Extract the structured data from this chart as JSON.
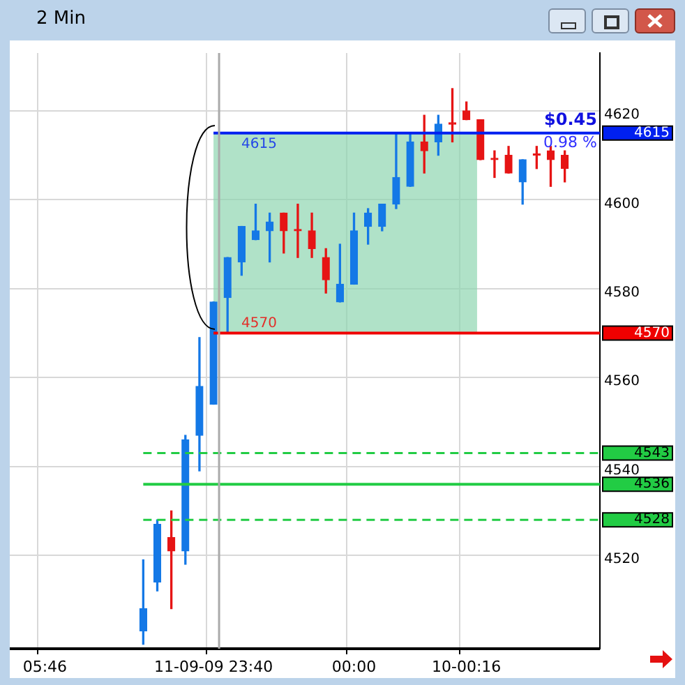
{
  "chart_data": {
    "type": "candlestick",
    "title": "2 Min",
    "categories": [
      null,
      null,
      "05:46",
      null,
      null,
      null,
      null,
      null,
      null,
      null,
      null,
      null,
      null,
      null,
      "11-09-09 23:40",
      null,
      null,
      null,
      null,
      null,
      null,
      null,
      null,
      null,
      "00:00",
      null,
      null,
      null,
      null,
      null,
      null,
      null,
      "10-00:16",
      null,
      null,
      null,
      null,
      null,
      null,
      null,
      null,
      null
    ],
    "ohlc": [
      null,
      null,
      null,
      null,
      null,
      null,
      null,
      null,
      null,
      [
        4503,
        4519,
        4500,
        4508
      ],
      [
        4514,
        4528,
        4512,
        4527
      ],
      [
        4524,
        4530,
        4508,
        4521
      ],
      [
        4521,
        4547,
        4518,
        4546
      ],
      [
        4547,
        4569,
        4539,
        4558
      ],
      [
        4554,
        4577,
        4554,
        4577
      ],
      [
        4578,
        4587,
        4570,
        4587
      ],
      [
        4586,
        4594,
        4583,
        4594
      ],
      [
        4591,
        4599,
        4591,
        4593
      ],
      [
        4593,
        4597,
        4586,
        4595
      ],
      [
        4597,
        4597,
        4588,
        4593
      ],
      [
        4593,
        4599,
        4587,
        4593
      ],
      [
        4593,
        4597,
        4587,
        4589
      ],
      [
        4587,
        4589,
        4579,
        4582
      ],
      [
        4577,
        4590,
        4577,
        4581
      ],
      [
        4581,
        4597,
        4581,
        4593
      ],
      [
        4594,
        4598,
        4590,
        4597
      ],
      [
        4594,
        4599,
        4593,
        4599
      ],
      [
        4599,
        4615,
        4598,
        4605
      ],
      [
        4603,
        4615,
        4603,
        4613
      ],
      [
        4613,
        4619,
        4606,
        4611
      ],
      [
        4613,
        4619,
        4610,
        4617
      ],
      [
        4617,
        4625,
        4613,
        4617
      ],
      [
        4620,
        4622,
        4618,
        4618
      ],
      [
        4618,
        4618,
        4609,
        4609
      ],
      [
        4609,
        4611,
        4605,
        4609
      ],
      [
        4610,
        4612,
        4606,
        4606
      ],
      [
        4604,
        4609,
        4599,
        4609
      ],
      [
        4610,
        4612,
        4607,
        4610
      ],
      [
        4611,
        4612,
        4603,
        4609
      ],
      [
        4610,
        4611,
        4604,
        4607
      ],
      null,
      null
    ],
    "colors": [
      null,
      null,
      null,
      null,
      null,
      null,
      null,
      null,
      null,
      "#1478e6",
      "#1478e6",
      "#e61414",
      "#1478e6",
      "#1478e6",
      "#1478e6",
      "#1478e6",
      "#1478e6",
      "#1478e6",
      "#1478e6",
      "#e61414",
      "#e61414",
      "#e61414",
      "#e61414",
      "#1478e6",
      "#1478e6",
      "#1478e6",
      "#1478e6",
      "#1478e6",
      "#1478e6",
      "#e61414",
      "#1478e6",
      "#e61414",
      "#e61414",
      "#e61414",
      "#e61414",
      "#e61414",
      "#1478e6",
      "#e61414",
      "#e61414",
      "#e61414",
      null,
      null
    ],
    "ylim": [
      4499,
      4633
    ],
    "yticks": [
      4520,
      4540,
      4560,
      4580,
      4600,
      4620
    ],
    "ref_lines": [
      {
        "axis": "y",
        "value": 4615,
        "label": "4615",
        "color": "#0020f0",
        "line_style": "solid"
      },
      {
        "axis": "y",
        "value": 4570,
        "label": "4570",
        "color": "#f00000",
        "line_style": "solid"
      },
      {
        "axis": "y",
        "value": 4543,
        "label": "4543",
        "color": "#22cc44",
        "line_style": "dashed"
      },
      {
        "axis": "y",
        "value": 4536,
        "label": "4536",
        "color": "#22cc44",
        "line_style": "solid"
      },
      {
        "axis": "y",
        "value": 4528,
        "label": "4528",
        "color": "#22cc44",
        "line_style": "dashed"
      },
      {
        "axis": "x",
        "value": "11-09-09 23:40",
        "color": "#aaaaaa",
        "line_style": "solid"
      }
    ],
    "bands": [
      {
        "axis": "y",
        "from": 4570,
        "to": 4615,
        "color": "#8fd6b0"
      }
    ],
    "annotations": [
      "$0.45",
      "0.98 %"
    ],
    "grid": true,
    "legend": false
  }
}
